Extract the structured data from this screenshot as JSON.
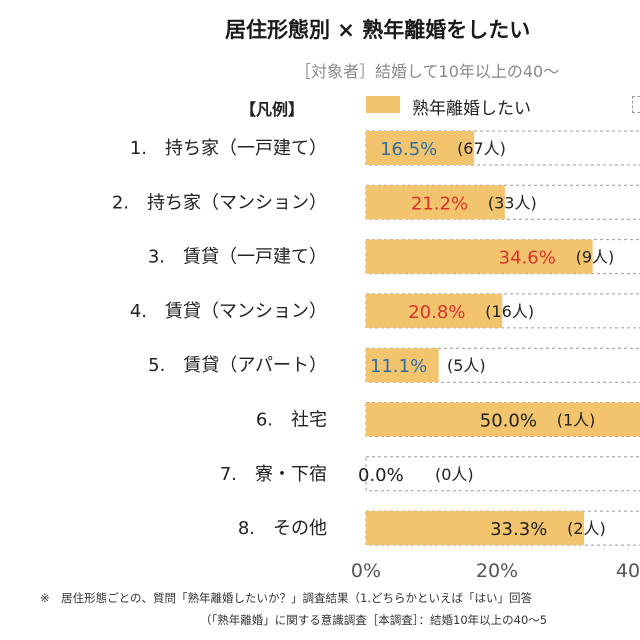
{
  "chart_data": {
    "type": "bar",
    "orientation": "horizontal",
    "title": "居住形態別 × 熟年離婚をしたい",
    "subtitle": "［対象者］結婚して10年以上の40〜",
    "legend_title": "【凡例】",
    "series": [
      {
        "name": "熟年離婚したい",
        "color": "#f2c46d",
        "values": [
          16.5,
          21.2,
          34.6,
          20.8,
          11.1,
          50.0,
          0.0,
          33.3
        ],
        "value_labels": [
          "16.5%",
          "21.2%",
          "34.6%",
          "20.8%",
          "11.1%",
          "50.0%",
          "0.0%",
          "33.3%"
        ],
        "counts": [
          "(67人)",
          "(33人)",
          "(9人)",
          "(16人)",
          "(5人)",
          "(1人)",
          "(0人)",
          "(2人)"
        ],
        "label_colors": [
          "#2e6da4",
          "#d9322b",
          "#d9322b",
          "#d9322b",
          "#2e6da4",
          "#222222",
          "#222222",
          "#222222"
        ]
      }
    ],
    "categories": [
      "1.　持ち家（一戸建て）",
      "2.　持ち家（マンション）",
      "3.　賃貸（一戸建て）",
      "4.　賃貸（マンション）",
      "5.　賃貸（アパート）",
      "6.　社宅",
      "7.　寮・下宿",
      "8.　その他"
    ],
    "xaxis_ticks": [
      "0%",
      "20%",
      "40"
    ],
    "xlim": [
      0,
      100
    ],
    "grid": false,
    "legend_position": "top"
  },
  "footnotes": [
    "※　居住形態ごとの、質問「熟年離婚したいか？」調査結果（1.どちらかといえば「はい」回答",
    "（「熟年離婚」に関する意識調査［本調査］：結婚10年以上の40〜5"
  ]
}
